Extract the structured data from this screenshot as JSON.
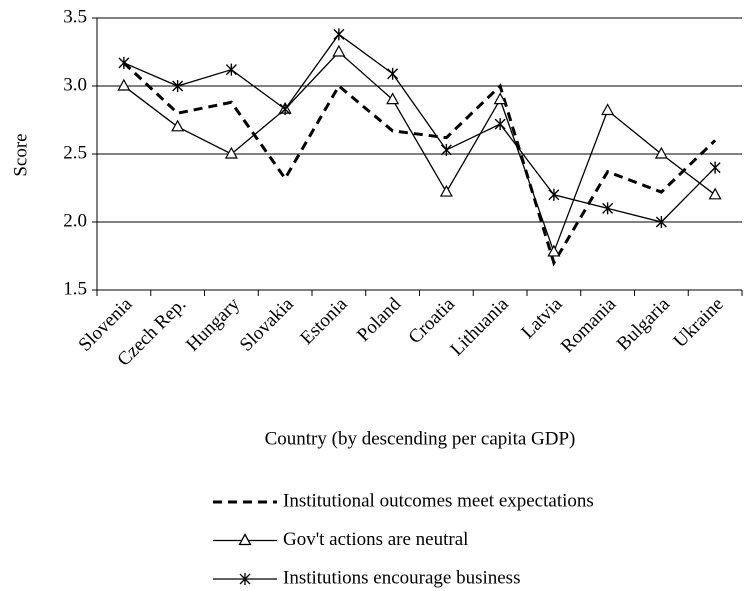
{
  "chart_data": {
    "type": "line",
    "categories": [
      "Slovenia",
      "Czech Rep.",
      "Hungary",
      "Slovakia",
      "Estonia",
      "Poland",
      "Croatia",
      "Lithuania",
      "Latvia",
      "Romania",
      "Bulgaria",
      "Ukraine"
    ],
    "series": [
      {
        "name": "Institutional outcomes meet expectations",
        "color": "#000000",
        "dashed": true,
        "marker": "none",
        "values": [
          3.17,
          2.8,
          2.88,
          2.32,
          3.0,
          2.67,
          2.62,
          3.0,
          1.7,
          2.37,
          2.22,
          2.6
        ]
      },
      {
        "name": "Gov't actions are neutral",
        "color": "#000000",
        "dashed": false,
        "marker": "triangle",
        "values": [
          3.0,
          2.7,
          2.5,
          2.83,
          3.25,
          2.9,
          2.22,
          2.9,
          1.78,
          2.82,
          2.5,
          2.2
        ]
      },
      {
        "name": "Institutions encourage business",
        "color": "#000000",
        "dashed": false,
        "marker": "star",
        "values": [
          3.17,
          3.0,
          3.12,
          2.83,
          3.38,
          3.09,
          2.53,
          2.72,
          2.2,
          2.1,
          2.0,
          2.4
        ]
      }
    ],
    "ylabel": "Score",
    "xlabel": "Country (by descending per capita GDP)",
    "ylim": [
      1.5,
      3.5
    ],
    "yticks": [
      1.5,
      {
        "value": 2,
        "label": "2.0"
      },
      2.5,
      {
        "value": 3,
        "label": "3.0"
      },
      {
        "value": 3.5,
        "label": "3.5"
      }
    ],
    "grid": true
  }
}
